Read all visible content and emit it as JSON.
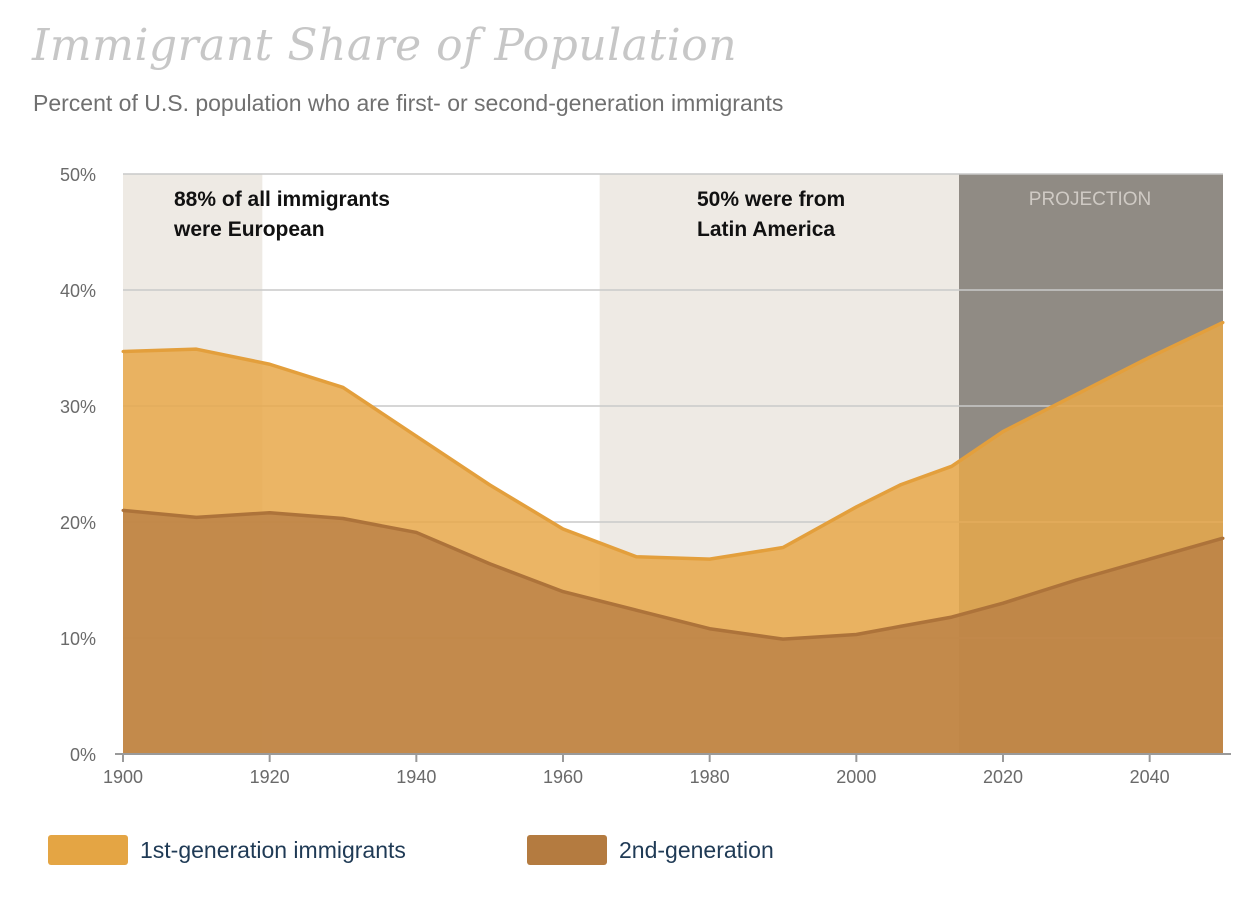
{
  "title": "Immigrant Share of Population",
  "subtitle": "Percent of U.S. population who are first- or second-generation immigrants",
  "colors": {
    "first_gen": "#e8a84a",
    "second_gen": "#b98046",
    "shade_light": "#eeeae4",
    "shade_dark": "#908b84",
    "grid": "#c9c9c9"
  },
  "legend": [
    {
      "label": "1st-generation immigrants",
      "color": "#e4a544"
    },
    {
      "label": "2nd-generation",
      "color": "#b47b40"
    }
  ],
  "chart_data": {
    "type": "area",
    "stacked": false,
    "x": [
      1900,
      1910,
      1920,
      1930,
      1940,
      1950,
      1960,
      1970,
      1980,
      1990,
      2000,
      2006,
      2013,
      2020,
      2030,
      2040,
      2050
    ],
    "series": [
      {
        "name": "1st-generation immigrants",
        "values": [
          34.7,
          34.9,
          33.6,
          31.6,
          27.4,
          23.2,
          19.4,
          17.0,
          16.8,
          17.8,
          21.3,
          23.2,
          24.8,
          27.8,
          31.0,
          34.2,
          37.2
        ]
      },
      {
        "name": "2nd-generation",
        "values": [
          21.0,
          20.4,
          20.8,
          20.3,
          19.1,
          16.4,
          14.0,
          12.4,
          10.8,
          9.9,
          10.3,
          11.0,
          11.8,
          13.0,
          15.0,
          16.8,
          18.6
        ]
      }
    ],
    "xlim": [
      1900,
      2050
    ],
    "ylim": [
      0,
      50
    ],
    "x_ticks": [
      "1900",
      "1920",
      "1940",
      "1960",
      "1980",
      "2000",
      "2020",
      "2040"
    ],
    "y_ticks": [
      "0%",
      "10%",
      "20%",
      "30%",
      "40%",
      "50%"
    ],
    "grid": true,
    "shaded_periods": [
      {
        "start": 1900,
        "end": 1919,
        "style": "light",
        "label": [
          "88% of all immigrants",
          "were European"
        ]
      },
      {
        "start": 1965,
        "end": 2014,
        "style": "light",
        "label": [
          "50% were from",
          "Latin America"
        ]
      },
      {
        "start": 2014,
        "end": 2050,
        "style": "dark",
        "label": [
          "PROJECTION"
        ]
      }
    ]
  }
}
